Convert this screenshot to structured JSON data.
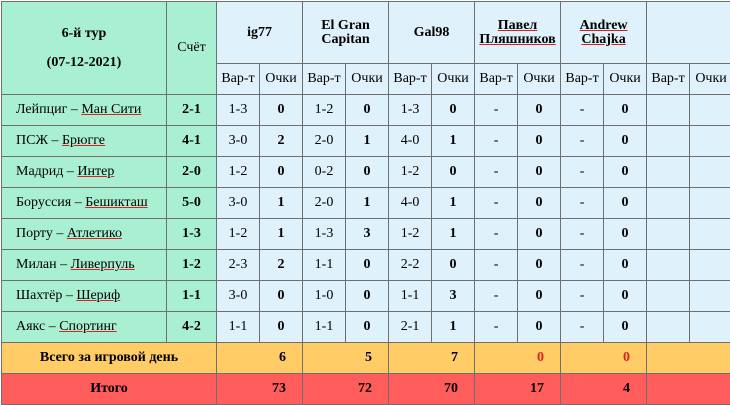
{
  "title_line1": "6-й тур",
  "title_line2": "(07-12-2021)",
  "score_header": "Счёт",
  "variant_label": "Вар-т",
  "points_label": "Очки",
  "players": [
    {
      "name": "ig77"
    },
    {
      "name": "El Gran Capitan"
    },
    {
      "name": "Gal98"
    },
    {
      "name": "Павел Пляшников"
    },
    {
      "name": "Andrew Chajka"
    },
    {
      "name": ""
    }
  ],
  "matches": [
    {
      "home": "Лейпциг",
      "away": "Ман Сити",
      "score": "2-1",
      "bets": [
        [
          "1-3",
          "0"
        ],
        [
          "1-2",
          "0"
        ],
        [
          "1-3",
          "0"
        ],
        [
          "-",
          "0"
        ],
        [
          "-",
          "0"
        ],
        [
          "",
          ""
        ]
      ]
    },
    {
      "home": "ПСЖ",
      "away": "Брюгге",
      "score": "4-1",
      "bets": [
        [
          "3-0",
          "2"
        ],
        [
          "2-0",
          "1"
        ],
        [
          "4-0",
          "1"
        ],
        [
          "-",
          "0"
        ],
        [
          "-",
          "0"
        ],
        [
          "",
          ""
        ]
      ]
    },
    {
      "home": "Мадрид",
      "away": "Интер",
      "score": "2-0",
      "bets": [
        [
          "1-2",
          "0"
        ],
        [
          "0-2",
          "0"
        ],
        [
          "1-2",
          "0"
        ],
        [
          "-",
          "0"
        ],
        [
          "-",
          "0"
        ],
        [
          "",
          ""
        ]
      ]
    },
    {
      "home": "Боруссия",
      "away": "Бешикташ",
      "score": "5-0",
      "bets": [
        [
          "3-0",
          "1"
        ],
        [
          "2-0",
          "1"
        ],
        [
          "4-0",
          "1"
        ],
        [
          "-",
          "0"
        ],
        [
          "-",
          "0"
        ],
        [
          "",
          ""
        ]
      ]
    },
    {
      "home": "Порту",
      "away": "Атлетико",
      "score": "1-3",
      "bets": [
        [
          "1-2",
          "1"
        ],
        [
          "1-3",
          "3"
        ],
        [
          "1-2",
          "1"
        ],
        [
          "-",
          "0"
        ],
        [
          "-",
          "0"
        ],
        [
          "",
          ""
        ]
      ]
    },
    {
      "home": "Милан",
      "away": "Ливерпуль",
      "score": "1-2",
      "bets": [
        [
          "2-3",
          "2"
        ],
        [
          "1-1",
          "0"
        ],
        [
          "2-2",
          "0"
        ],
        [
          "-",
          "0"
        ],
        [
          "-",
          "0"
        ],
        [
          "",
          ""
        ]
      ]
    },
    {
      "home": "Шахтёр",
      "away": "Шериф",
      "score": "1-1",
      "bets": [
        [
          "3-0",
          "0"
        ],
        [
          "1-0",
          "0"
        ],
        [
          "1-1",
          "3"
        ],
        [
          "-",
          "0"
        ],
        [
          "-",
          "0"
        ],
        [
          "",
          ""
        ]
      ]
    },
    {
      "home": "Аякс",
      "away": "Спортинг",
      "score": "4-2",
      "bets": [
        [
          "1-1",
          "0"
        ],
        [
          "1-1",
          "0"
        ],
        [
          "2-1",
          "1"
        ],
        [
          "-",
          "0"
        ],
        [
          "-",
          "0"
        ],
        [
          "",
          ""
        ]
      ]
    }
  ],
  "day_total": {
    "label": "Всего за игровой день",
    "values": [
      "6",
      "5",
      "7",
      "0",
      "0",
      ""
    ]
  },
  "grand_total": {
    "label": "Итого",
    "values": [
      "73",
      "72",
      "70",
      "17",
      "4",
      ""
    ]
  },
  "colors": {
    "header": "#a9f0d2",
    "cells": "#dff1fb",
    "day_row": "#ffcc66",
    "total_row": "#ff5c5c",
    "points": "#e02020"
  }
}
